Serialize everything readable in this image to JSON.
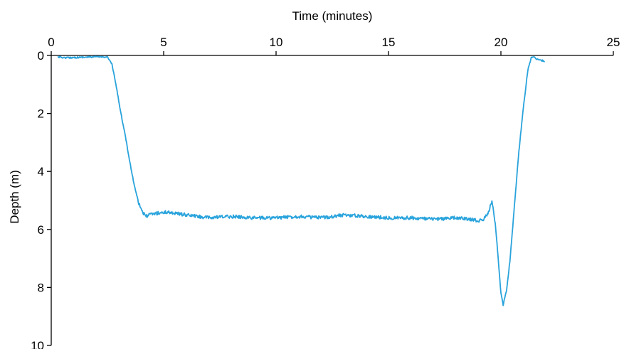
{
  "chart_data": {
    "type": "line",
    "xlabel": "Time (minutes)",
    "ylabel": "Depth (m)",
    "x_axis_position": "top",
    "y_axis_inverted": true,
    "xlim": [
      0,
      25
    ],
    "ylim": [
      0,
      10
    ],
    "x_ticks": [
      0,
      5,
      10,
      15,
      20,
      25
    ],
    "y_ticks": [
      0,
      2,
      4,
      6,
      8,
      10
    ],
    "grid": false,
    "legend": "none",
    "line_color": "#29a3dc",
    "series": [
      {
        "x": [
          0.3,
          0.6,
          1.0,
          1.5,
          2.0,
          2.5,
          2.7,
          2.9,
          3.1,
          3.3,
          3.5,
          3.7,
          3.9,
          4.1,
          4.2,
          4.35,
          4.6,
          5.2,
          6.0,
          7.0,
          8.0,
          9.0,
          10.0,
          11.0,
          12.0,
          13.0,
          14.0,
          15.0,
          16.0,
          17.0,
          18.0,
          18.6,
          19.0,
          19.25,
          19.45,
          19.6,
          19.75,
          19.9,
          20.0,
          20.1,
          20.25,
          20.4,
          20.6,
          20.8,
          21.0,
          21.2,
          21.35,
          21.45,
          21.55,
          21.7,
          21.85,
          21.95
        ],
        "y": [
          0.05,
          0.08,
          0.07,
          0.06,
          0.05,
          0.05,
          0.3,
          1.1,
          2.0,
          2.8,
          3.7,
          4.5,
          5.1,
          5.45,
          5.55,
          5.5,
          5.45,
          5.4,
          5.5,
          5.6,
          5.55,
          5.6,
          5.6,
          5.55,
          5.6,
          5.5,
          5.55,
          5.6,
          5.6,
          5.65,
          5.6,
          5.65,
          5.7,
          5.65,
          5.4,
          5.0,
          5.8,
          7.2,
          8.2,
          8.6,
          8.1,
          7.1,
          5.2,
          3.3,
          1.8,
          0.5,
          0.08,
          0.05,
          0.1,
          0.15,
          0.18,
          0.22
        ]
      }
    ]
  }
}
